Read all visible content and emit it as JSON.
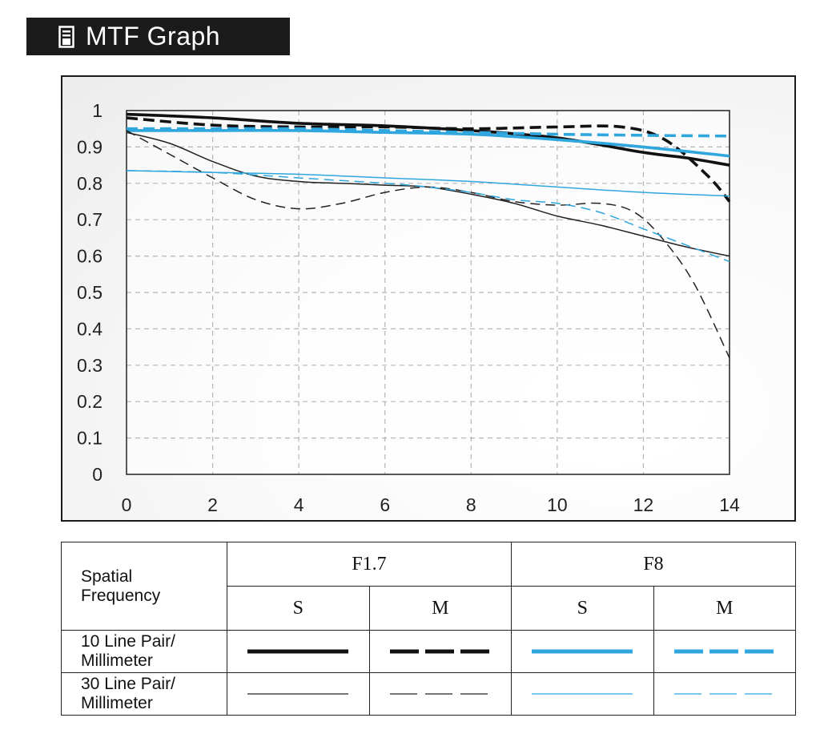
{
  "header": {
    "title": "MTF Graph",
    "icon": "document-icon"
  },
  "chart_data": {
    "type": "line",
    "xlim": [
      0,
      14
    ],
    "ylim": [
      0,
      1
    ],
    "x_ticks": [
      "0",
      "2",
      "4",
      "6",
      "8",
      "10",
      "12",
      "14"
    ],
    "y_ticks": [
      "0",
      "0.1",
      "0.2",
      "0.3",
      "0.4",
      "0.5",
      "0.6",
      "0.7",
      "0.8",
      "0.9",
      "1"
    ],
    "grid": true,
    "series": [
      {
        "name": "F1.7 S 10 Line Pair/Millimeter",
        "color": "#111111",
        "dash": "solid",
        "weight": "thick",
        "points": [
          [
            0,
            0.99
          ],
          [
            2,
            0.98
          ],
          [
            4,
            0.965
          ],
          [
            6,
            0.958
          ],
          [
            8,
            0.945
          ],
          [
            10,
            0.925
          ],
          [
            12,
            0.885
          ],
          [
            13,
            0.87
          ],
          [
            14,
            0.85
          ]
        ]
      },
      {
        "name": "F1.7 M 10 Line Pair/Millimeter",
        "color": "#111111",
        "dash": "dashed",
        "weight": "thick",
        "points": [
          [
            0,
            0.98
          ],
          [
            2,
            0.96
          ],
          [
            4,
            0.955
          ],
          [
            6,
            0.955
          ],
          [
            8,
            0.95
          ],
          [
            10,
            0.955
          ],
          [
            11.5,
            0.955
          ],
          [
            12.5,
            0.92
          ],
          [
            13.5,
            0.82
          ],
          [
            14,
            0.75
          ]
        ]
      },
      {
        "name": "F8 S 10 Line Pair/Millimeter",
        "color": "#2fa6dd",
        "dash": "solid",
        "weight": "thick",
        "points": [
          [
            0,
            0.945
          ],
          [
            2,
            0.945
          ],
          [
            4,
            0.945
          ],
          [
            6,
            0.94
          ],
          [
            8,
            0.935
          ],
          [
            10,
            0.92
          ],
          [
            12,
            0.9
          ],
          [
            14,
            0.875
          ]
        ]
      },
      {
        "name": "F8 M 10 Line Pair/Millimeter",
        "color": "#2fa6dd",
        "dash": "dashed",
        "weight": "thick",
        "points": [
          [
            0,
            0.95
          ],
          [
            2,
            0.95
          ],
          [
            4,
            0.95
          ],
          [
            6,
            0.945
          ],
          [
            8,
            0.94
          ],
          [
            10,
            0.935
          ],
          [
            12,
            0.932
          ],
          [
            14,
            0.93
          ]
        ]
      },
      {
        "name": "F1.7 S 30 Line Pair/Millimeter",
        "color": "#222222",
        "dash": "solid",
        "weight": "thin",
        "points": [
          [
            0,
            0.94
          ],
          [
            1,
            0.91
          ],
          [
            2,
            0.86
          ],
          [
            3,
            0.82
          ],
          [
            4,
            0.805
          ],
          [
            5,
            0.8
          ],
          [
            6,
            0.795
          ],
          [
            7,
            0.79
          ],
          [
            8,
            0.77
          ],
          [
            9,
            0.745
          ],
          [
            10,
            0.71
          ],
          [
            11,
            0.685
          ],
          [
            12,
            0.655
          ],
          [
            13,
            0.625
          ],
          [
            14,
            0.6
          ]
        ]
      },
      {
        "name": "F1.7 M 30 Line Pair/Millimeter",
        "color": "#222222",
        "dash": "dashed",
        "weight": "thin",
        "points": [
          [
            0,
            0.945
          ],
          [
            1,
            0.88
          ],
          [
            2,
            0.815
          ],
          [
            3,
            0.755
          ],
          [
            4,
            0.73
          ],
          [
            5,
            0.745
          ],
          [
            6,
            0.775
          ],
          [
            7,
            0.79
          ],
          [
            8,
            0.775
          ],
          [
            9,
            0.75
          ],
          [
            10,
            0.74
          ],
          [
            11,
            0.745
          ],
          [
            11.8,
            0.72
          ],
          [
            12.5,
            0.64
          ],
          [
            13.2,
            0.52
          ],
          [
            14,
            0.32
          ]
        ]
      },
      {
        "name": "F8 S 30 Line Pair/Millimeter",
        "color": "#2fa6dd",
        "dash": "solid",
        "weight": "thin",
        "points": [
          [
            0,
            0.835
          ],
          [
            2,
            0.83
          ],
          [
            4,
            0.825
          ],
          [
            6,
            0.815
          ],
          [
            8,
            0.805
          ],
          [
            10,
            0.79
          ],
          [
            12,
            0.775
          ],
          [
            14,
            0.765
          ]
        ]
      },
      {
        "name": "F8 M 30 Line Pair/Millimeter",
        "color": "#2fa6dd",
        "dash": "dashed",
        "weight": "thin",
        "points": [
          [
            0,
            0.835
          ],
          [
            2,
            0.83
          ],
          [
            4,
            0.815
          ],
          [
            6,
            0.8
          ],
          [
            7,
            0.79
          ],
          [
            8,
            0.775
          ],
          [
            9,
            0.755
          ],
          [
            10,
            0.745
          ],
          [
            11,
            0.72
          ],
          [
            12,
            0.675
          ],
          [
            13,
            0.63
          ],
          [
            14,
            0.585
          ]
        ]
      }
    ]
  },
  "legend": {
    "spatial_label_line1": "Spatial",
    "spatial_label_line2": "Frequency",
    "aperture_1": "F1.7",
    "aperture_2": "F8",
    "col_s": "S",
    "col_m": "M",
    "row_10_line1": "10 Line Pair/",
    "row_10_line2": "Millimeter",
    "row_30_line1": "30 Line Pair/",
    "row_30_line2": "Millimeter",
    "black_color": "#111111",
    "blue_color": "#2fa6dd"
  }
}
